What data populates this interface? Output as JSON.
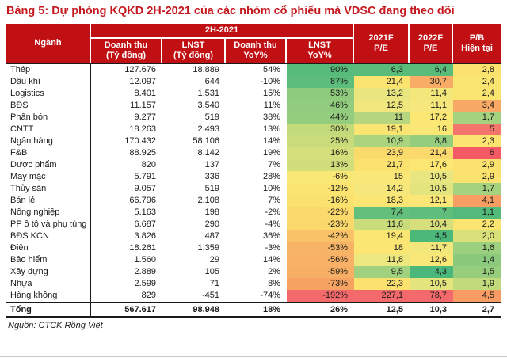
{
  "title": "Bảng 5: Dự phóng KQKD 2H-2021 của các nhóm cổ phiếu mà VDSC đang theo dõi",
  "source": "Nguồn: CTCK Rồng Việt",
  "colors": {
    "header_bg": "#C01014",
    "header_text": "#FFFFFF",
    "title_red": "#C5181E",
    "border_dark": "#1a1a1a",
    "heat_green_strong": "#57BB7B",
    "heat_yellow": "#FBE26E",
    "heat_orange": "#F8AC66",
    "heat_red": "#F4696B"
  },
  "table": {
    "header": {
      "nganh": "Ngành",
      "group_2h2021": "2H-2021",
      "sub_revenue": "Doanh thu\n(Tỷ đồng)",
      "sub_profit": "LNST\n(Tỷ đồng)",
      "sub_revenue_yoy": "Doanh thu\nYoY%",
      "sub_profit_yoy": "LNST\nYoY%",
      "pe2021": "2021F\nP/E",
      "pe2022": "2022F\nP/E",
      "pb": "P/B\nHiện tại"
    },
    "rows": [
      {
        "nganh": "Thép",
        "doanh_thu": "127.676",
        "lnst": "18.889",
        "dt_yoy": "54%",
        "lnst_yoy": {
          "v": "90%",
          "bg": "#57BB7B"
        },
        "pe_2021": {
          "v": "6,3",
          "bg": "#5ABC7B"
        },
        "pe_2022": {
          "v": "6,4",
          "bg": "#5ABC7B"
        },
        "pb": {
          "v": "2,8",
          "bg": "#FBE26E"
        }
      },
      {
        "nganh": "Dầu khí",
        "doanh_thu": "12.097",
        "lnst": "644",
        "dt_yoy": "-10%",
        "lnst_yoy": {
          "v": "87%",
          "bg": "#5CBD7C"
        },
        "pe_2021": {
          "v": "21,4",
          "bg": "#FBE36F"
        },
        "pe_2022": {
          "v": "30,7",
          "bg": "#F8AC66"
        },
        "pb": {
          "v": "2,4",
          "bg": "#FBE571"
        }
      },
      {
        "nganh": "Logistics",
        "doanh_thu": "8.401",
        "lnst": "1.531",
        "dt_yoy": "15%",
        "lnst_yoy": {
          "v": "53%",
          "bg": "#8ECB7D"
        },
        "pe_2021": {
          "v": "13,2",
          "bg": "#E9E680"
        },
        "pe_2022": {
          "v": "11,4",
          "bg": "#F3E77C"
        },
        "pb": {
          "v": "2,4",
          "bg": "#FBE571"
        }
      },
      {
        "nganh": "BĐS",
        "doanh_thu": "11.157",
        "lnst": "3.540",
        "dt_yoy": "11%",
        "lnst_yoy": {
          "v": "46%",
          "bg": "#92CC7E"
        },
        "pe_2021": {
          "v": "12,5",
          "bg": "#EFE77E"
        },
        "pe_2022": {
          "v": "11,1",
          "bg": "#F5E77B"
        },
        "pb": {
          "v": "3,4",
          "bg": "#F8A966"
        }
      },
      {
        "nganh": "Phân bón",
        "doanh_thu": "9.277",
        "lnst": "519",
        "dt_yoy": "38%",
        "lnst_yoy": {
          "v": "44%",
          "bg": "#95CD7E"
        },
        "pe_2021": {
          "v": "11",
          "bg": "#B5D67F"
        },
        "pe_2022": {
          "v": "17,2",
          "bg": "#FBE773"
        },
        "pb": {
          "v": "1,7",
          "bg": "#A5D27E"
        }
      },
      {
        "nganh": "CNTT",
        "doanh_thu": "18.263",
        "lnst": "2.493",
        "dt_yoy": "13%",
        "lnst_yoy": {
          "v": "30%",
          "bg": "#C3DA7B"
        },
        "pe_2021": {
          "v": "19,1",
          "bg": "#FBE572"
        },
        "pe_2022": {
          "v": "16",
          "bg": "#FBE775"
        },
        "pb": {
          "v": "5",
          "bg": "#F4756C"
        }
      },
      {
        "nganh": "Ngân hàng",
        "doanh_thu": "170.432",
        "lnst": "58.106",
        "dt_yoy": "14%",
        "lnst_yoy": {
          "v": "25%",
          "bg": "#C8DC7B"
        },
        "pe_2021": {
          "v": "10,9",
          "bg": "#ABD47E"
        },
        "pe_2022": {
          "v": "8,8",
          "bg": "#95CD7E"
        },
        "pb": {
          "v": "2,3",
          "bg": "#FBE470"
        }
      },
      {
        "nganh": "F&B",
        "doanh_thu": "88.925",
        "lnst": "8.142",
        "dt_yoy": "19%",
        "lnst_yoy": {
          "v": "16%",
          "bg": "#D5DF7B"
        },
        "pe_2021": {
          "v": "23,9",
          "bg": "#FBDA6C"
        },
        "pe_2022": {
          "v": "21,4",
          "bg": "#FBD96C"
        },
        "pb": {
          "v": "6",
          "bg": "#F45A65"
        }
      },
      {
        "nganh": "Dược phẩm",
        "doanh_thu": "820",
        "lnst": "137",
        "dt_yoy": "7%",
        "lnst_yoy": {
          "v": "13%",
          "bg": "#D2DE7B"
        },
        "pe_2021": {
          "v": "21,7",
          "bg": "#FBE26F"
        },
        "pe_2022": {
          "v": "17,6",
          "bg": "#FBE771"
        },
        "pb": {
          "v": "2,9",
          "bg": "#FBE16E"
        }
      },
      {
        "nganh": "May mặc",
        "doanh_thu": "5.791",
        "lnst": "336",
        "dt_yoy": "28%",
        "lnst_yoy": {
          "v": "-6%",
          "bg": "#FAE876"
        },
        "pe_2021": {
          "v": "15",
          "bg": "#FAE778"
        },
        "pe_2022": {
          "v": "10,5",
          "bg": "#E8E680"
        },
        "pb": {
          "v": "2,9",
          "bg": "#FBE16E"
        }
      },
      {
        "nganh": "Thủy sản",
        "doanh_thu": "9.057",
        "lnst": "519",
        "dt_yoy": "10%",
        "lnst_yoy": {
          "v": "-12%",
          "bg": "#FBE470"
        },
        "pe_2021": {
          "v": "14,2",
          "bg": "#F5E77B"
        },
        "pe_2022": {
          "v": "10,5",
          "bg": "#E3E47E"
        },
        "pb": {
          "v": "1,7",
          "bg": "#A5D27E"
        }
      },
      {
        "nganh": "Bán lẻ",
        "doanh_thu": "66.796",
        "lnst": "2.108",
        "dt_yoy": "7%",
        "lnst_yoy": {
          "v": "-16%",
          "bg": "#FBE26E"
        },
        "pe_2021": {
          "v": "18,3",
          "bg": "#FBE674"
        },
        "pe_2022": {
          "v": "12,1",
          "bg": "#FAE778"
        },
        "pb": {
          "v": "4,1",
          "bg": "#F89E64"
        }
      },
      {
        "nganh": "Nông nghiệp",
        "doanh_thu": "5.163",
        "lnst": "198",
        "dt_yoy": "-2%",
        "lnst_yoy": {
          "v": "-22%",
          "bg": "#FBD96C"
        },
        "pe_2021": {
          "v": "7,4",
          "bg": "#63BF7C"
        },
        "pe_2022": {
          "v": "7",
          "bg": "#5FBE7C"
        },
        "pb": {
          "v": "1,1",
          "bg": "#52BA7B"
        }
      },
      {
        "nganh": "PP ô tô và phụ tùng",
        "doanh_thu": "6.687",
        "lnst": "290",
        "dt_yoy": "-4%",
        "lnst_yoy": {
          "v": "-23%",
          "bg": "#FBD86B"
        },
        "pe_2021": {
          "v": "11,6",
          "bg": "#C9DC7B"
        },
        "pe_2022": {
          "v": "10,4",
          "bg": "#D6DF7B"
        },
        "pb": {
          "v": "2,2",
          "bg": "#FBE571"
        }
      },
      {
        "nganh": "BĐS KCN",
        "doanh_thu": "3.826",
        "lnst": "487",
        "dt_yoy": "36%",
        "lnst_yoy": {
          "v": "-42%",
          "bg": "#F9C268"
        },
        "pe_2021": {
          "v": "19,4",
          "bg": "#FBE573"
        },
        "pe_2022": {
          "v": "4,5",
          "bg": "#4BB87A"
        },
        "pb": {
          "v": "2,0",
          "bg": "#D9E07A"
        }
      },
      {
        "nganh": "Điện",
        "doanh_thu": "18.261",
        "lnst": "1.359",
        "dt_yoy": "-3%",
        "lnst_yoy": {
          "v": "-53%",
          "bg": "#F8B466"
        },
        "pe_2021": {
          "v": "18",
          "bg": "#FBE674"
        },
        "pe_2022": {
          "v": "11,7",
          "bg": "#F3E77C"
        },
        "pb": {
          "v": "1,6",
          "bg": "#9DD07E"
        }
      },
      {
        "nganh": "Bảo hiểm",
        "doanh_thu": "1.560",
        "lnst": "29",
        "dt_yoy": "14%",
        "lnst_yoy": {
          "v": "-56%",
          "bg": "#F8B166"
        },
        "pe_2021": {
          "v": "11,8",
          "bg": "#EDE77F"
        },
        "pe_2022": {
          "v": "12,6",
          "bg": "#F9E778"
        },
        "pb": {
          "v": "1,4",
          "bg": "#8BCA7D"
        }
      },
      {
        "nganh": "Xây dựng",
        "doanh_thu": "2.889",
        "lnst": "105",
        "dt_yoy": "2%",
        "lnst_yoy": {
          "v": "-59%",
          "bg": "#F7AE65"
        },
        "pe_2021": {
          "v": "9,5",
          "bg": "#A0D17E"
        },
        "pe_2022": {
          "v": "4,3",
          "bg": "#4AB87A"
        },
        "pb": {
          "v": "1,5",
          "bg": "#97CE7E"
        }
      },
      {
        "nganh": "Nhựa",
        "doanh_thu": "2.599",
        "lnst": "71",
        "dt_yoy": "8%",
        "lnst_yoy": {
          "v": "-73%",
          "bg": "#F6A263"
        },
        "pe_2021": {
          "v": "22,3",
          "bg": "#FBE16E"
        },
        "pe_2022": {
          "v": "10,5",
          "bg": "#E3E47E"
        },
        "pb": {
          "v": "1,9",
          "bg": "#C0DA7C"
        }
      },
      {
        "nganh": "Hàng không",
        "doanh_thu": "829",
        "lnst": "-451",
        "dt_yoy": "-74%",
        "lnst_yoy": {
          "v": "-192%",
          "bg": "#F4696B"
        },
        "pe_2021": {
          "v": "227,1",
          "bg": "#F4696B"
        },
        "pe_2022": {
          "v": "78,7",
          "bg": "#F4696B"
        },
        "pb": {
          "v": "4,5",
          "bg": "#F89C64"
        }
      }
    ],
    "total": {
      "nganh": "Tổng",
      "doanh_thu": "567.617",
      "lnst": "98.948",
      "dt_yoy": "18%",
      "lnst_yoy": "26%",
      "pe_2021": "12,5",
      "pe_2022": "10,3",
      "pb": "2,7"
    }
  }
}
